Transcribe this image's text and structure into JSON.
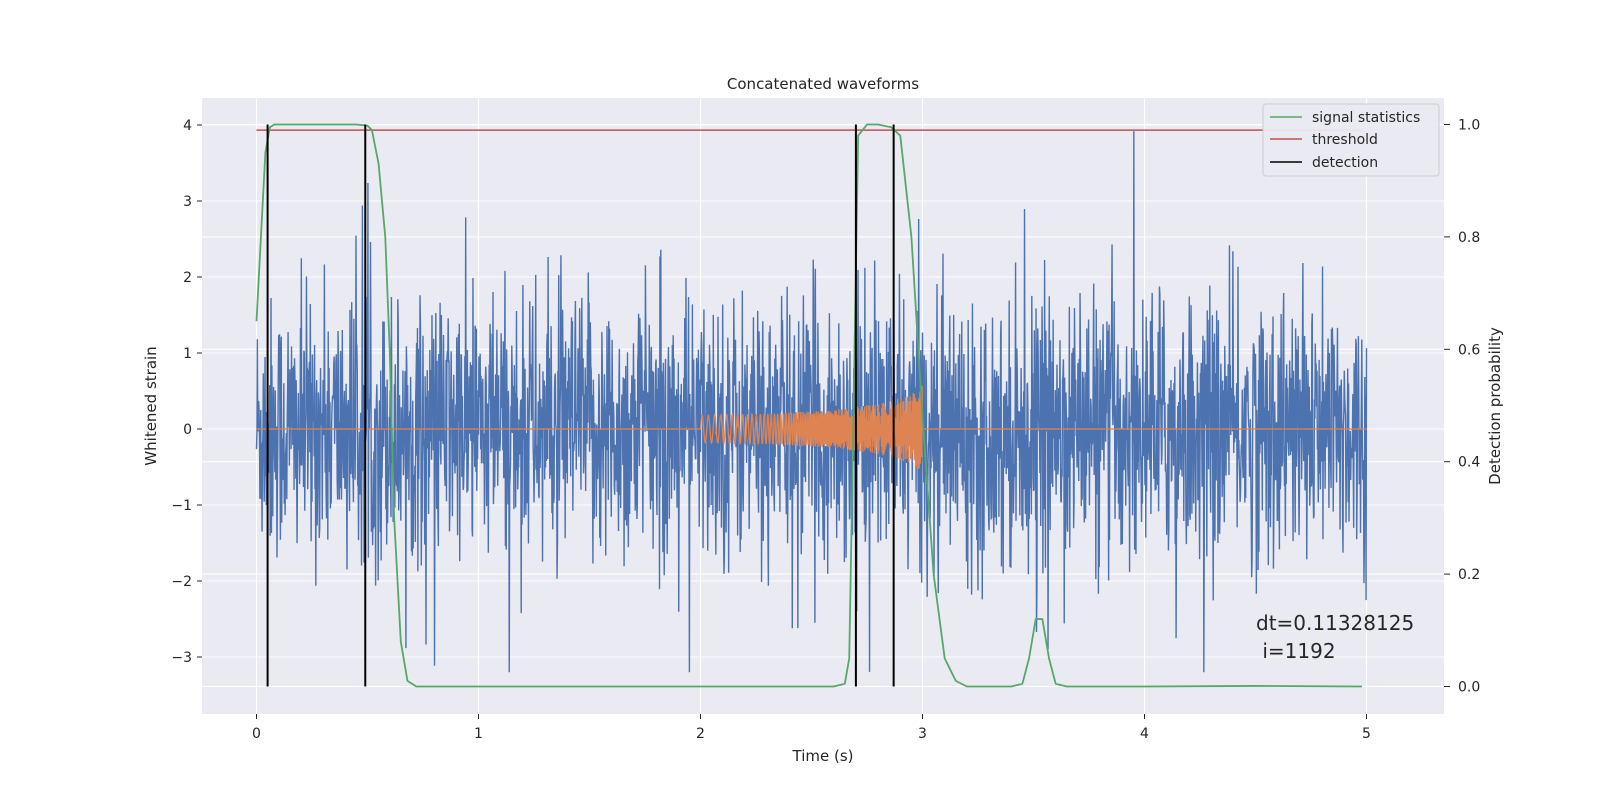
{
  "chart_data": {
    "type": "line",
    "title": "Concatenated waveforms",
    "xlabel": "Time (s)",
    "ylabel": "Whitened strain",
    "y2label": "Detection probability",
    "xlim": [
      -0.25,
      5.35
    ],
    "ylim": [
      -3.7,
      4.35
    ],
    "y2lim": [
      -0.048,
      1.048
    ],
    "xticks": [
      0,
      1,
      2,
      3,
      4,
      5
    ],
    "yticks": [
      -3,
      -2,
      -1,
      0,
      1,
      2,
      3,
      4
    ],
    "y2ticks": [
      "0.0",
      "0.2",
      "0.4",
      "0.6",
      "0.8",
      "1.0"
    ],
    "grid": true,
    "legend_position": "top-right",
    "annotation": {
      "line1": "dt=0.11328125",
      "line2": " i=1192"
    },
    "series": [
      {
        "name": "signal statistics",
        "axis": "right",
        "color": "#55a868",
        "x": [
          0.0,
          0.02,
          0.04,
          0.06,
          0.08,
          0.1,
          0.3,
          0.45,
          0.5,
          0.52,
          0.55,
          0.58,
          0.6,
          0.62,
          0.65,
          0.68,
          0.72,
          1.0,
          2.0,
          2.6,
          2.65,
          2.67,
          2.69,
          2.71,
          2.75,
          2.8,
          2.86,
          2.9,
          2.95,
          3.0,
          3.05,
          3.1,
          3.15,
          3.2,
          3.4,
          3.45,
          3.48,
          3.51,
          3.54,
          3.57,
          3.6,
          3.65,
          3.7,
          4.0,
          4.5,
          4.98
        ],
        "y": [
          0.65,
          0.8,
          0.95,
          0.995,
          1.0,
          1.0,
          1.0,
          1.0,
          0.998,
          0.99,
          0.93,
          0.8,
          0.6,
          0.3,
          0.08,
          0.01,
          0.0,
          0.0,
          0.0,
          0.0,
          0.005,
          0.05,
          0.5,
          0.98,
          1.0,
          1.0,
          0.995,
          0.98,
          0.8,
          0.48,
          0.2,
          0.05,
          0.01,
          0.0,
          0.0,
          0.005,
          0.05,
          0.12,
          0.12,
          0.05,
          0.005,
          0.0,
          0.0,
          0.0,
          0.001,
          0.0
        ]
      },
      {
        "name": "threshold",
        "axis": "right",
        "color": "#c44e52",
        "x": [
          0.0,
          4.98
        ],
        "y": [
          0.99,
          0.99
        ]
      },
      {
        "name": "detection",
        "axis": "right",
        "color": "#000000",
        "x": [
          0.05,
          0.49,
          2.7,
          2.87
        ]
      },
      {
        "name": "",
        "axis": "left",
        "color": "#4c72b0",
        "kind": "whitened strain noise",
        "x_range": [
          0.0,
          5.0
        ],
        "amplitude_envelope": [
          -3.2,
          4.0
        ]
      },
      {
        "name": "",
        "axis": "left",
        "color": "#dd8452",
        "kind": "injected chirp",
        "x": [
          0.0,
          2.0,
          2.3,
          2.6,
          2.8,
          2.95,
          3.0,
          5.0
        ],
        "amplitude": [
          0.0,
          0.18,
          0.2,
          0.25,
          0.33,
          0.45,
          0.6,
          0.0
        ]
      }
    ]
  }
}
